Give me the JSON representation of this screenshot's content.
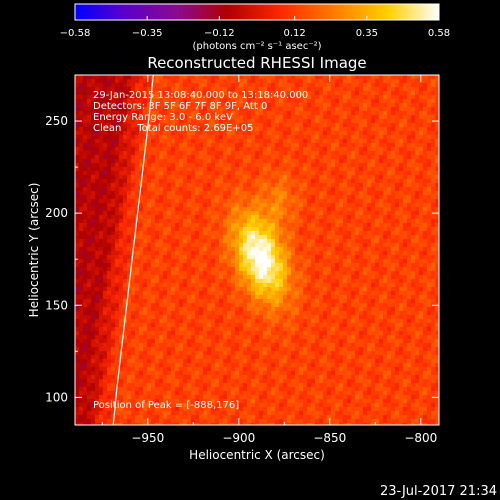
{
  "chart_data": {
    "type": "heatmap",
    "title": "Reconstructed RHESSI Image",
    "xlabel": "Heliocentric X (arcsec)",
    "ylabel": "Heliocentric Y (arcsec)",
    "xlim": [
      -990,
      -790
    ],
    "ylim": [
      85,
      275
    ],
    "x_ticks": [
      -950,
      -900,
      -850,
      -800
    ],
    "x_tick_labels": [
      "−950",
      "−900",
      "−850",
      "−800"
    ],
    "y_ticks": [
      100,
      150,
      200,
      250
    ],
    "y_tick_labels": [
      "100",
      "150",
      "200",
      "250"
    ],
    "colorbar": {
      "min": -0.58,
      "max": 0.58,
      "ticks": [
        -0.58,
        -0.35,
        -0.12,
        0.12,
        0.35,
        0.58
      ],
      "tick_labels": [
        "−0.58",
        "−0.35",
        "−0.12",
        "0.12",
        "0.35",
        "0.58"
      ],
      "units_label": "(photons cm⁻² s⁻¹ asec⁻²)"
    },
    "colormap_stops": [
      "#0000ff",
      "#5c00c8",
      "#8a0a90",
      "#b00000",
      "#ff2a00",
      "#ff7a00",
      "#ffd000",
      "#ffffff"
    ],
    "peak": {
      "x": -888,
      "y": 176
    },
    "annotations": [
      "29-Jan-2015 13:08:40.000 to 13:18:40.000",
      "Detectors: 3F 5F 6F 7F 8F 9F, Att 0",
      "Energy Range: 3.0 - 6.0 keV",
      "Clean     Total counts: 2.69E+05",
      "Position of Peak = [-888,176]"
    ],
    "limb_curve": {
      "x": [
        -969,
        -967,
        -964,
        -961,
        -958,
        -955,
        -952,
        -949,
        -947
      ],
      "y": [
        85,
        105,
        130,
        155,
        180,
        205,
        230,
        255,
        275
      ]
    },
    "timestamp": "23-Jul-2017 21:34"
  }
}
